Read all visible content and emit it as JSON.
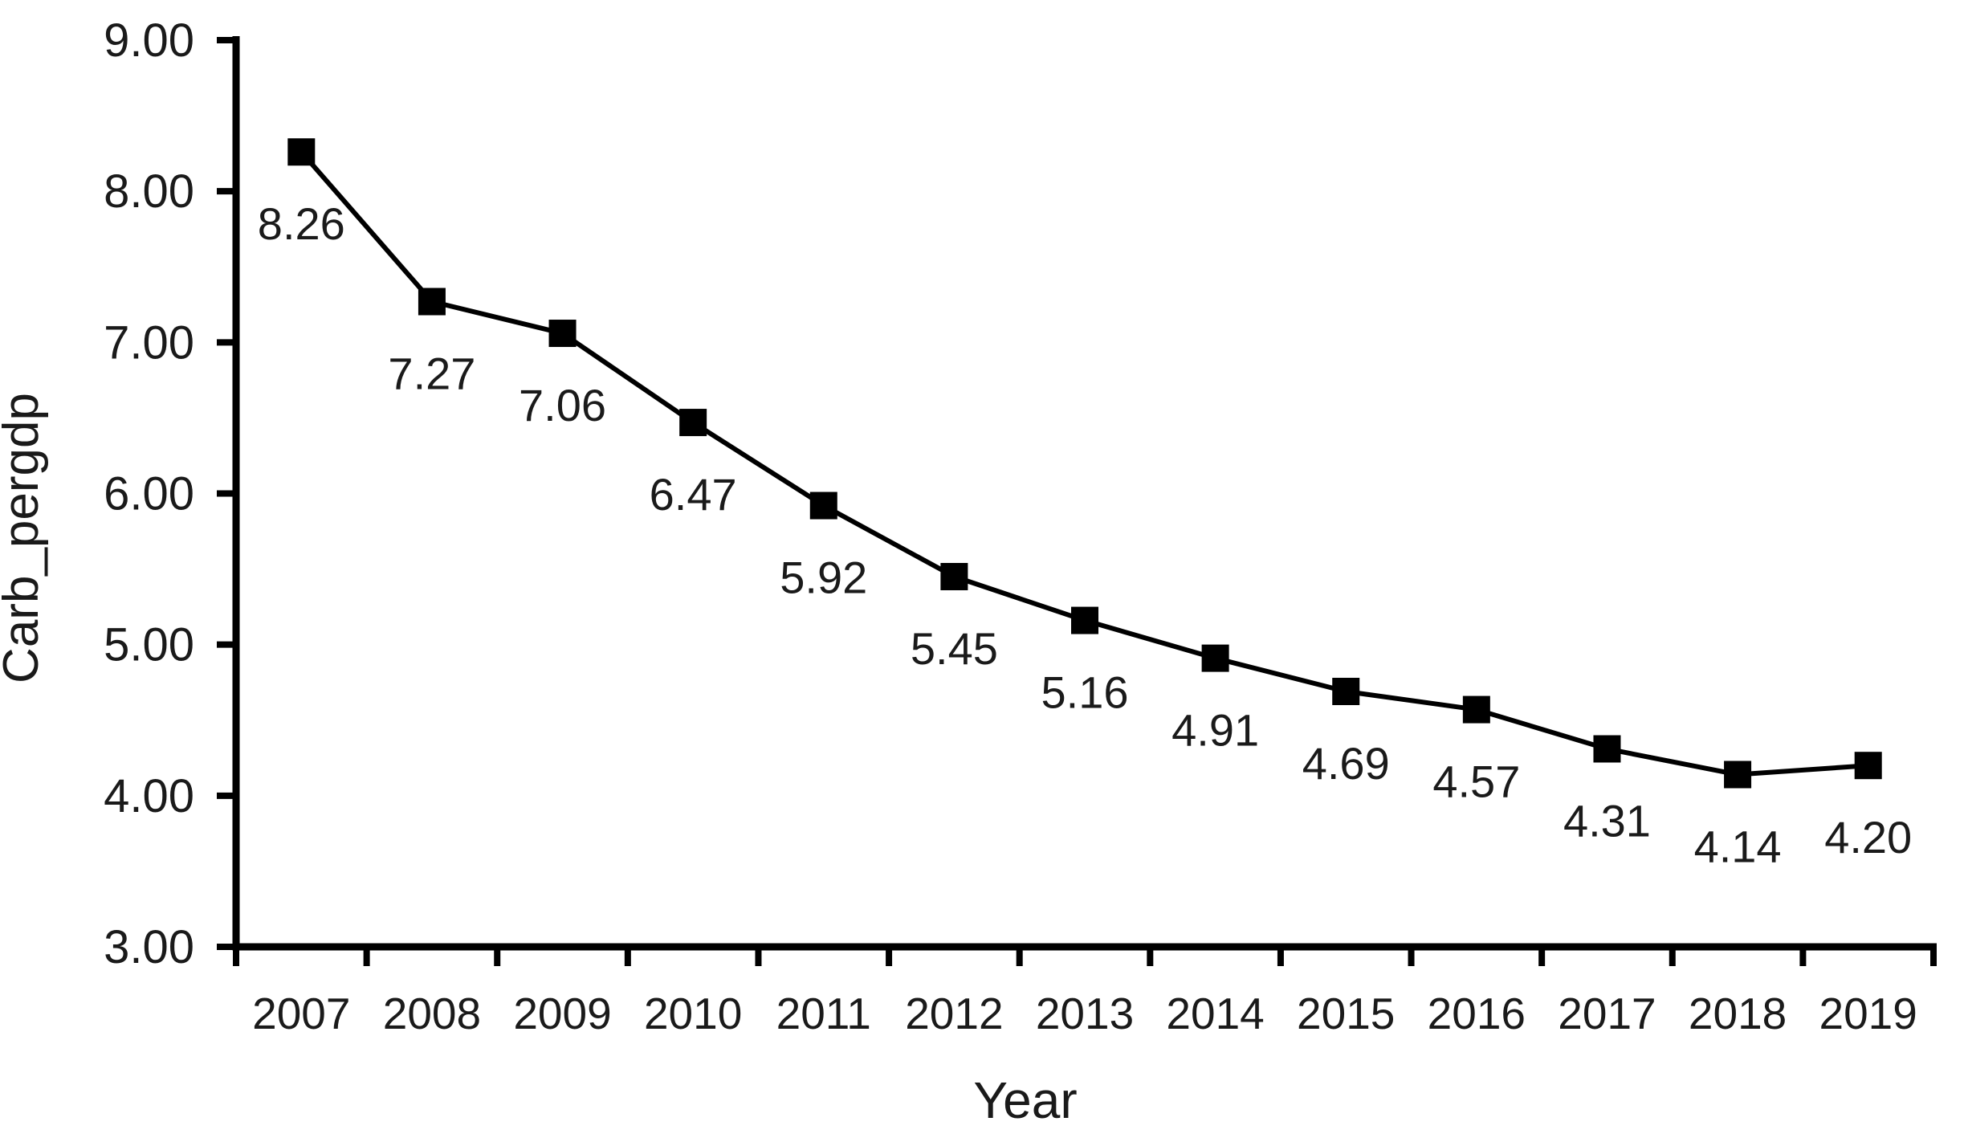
{
  "page": {
    "background": "#ffffff"
  },
  "chart_data": {
    "type": "line",
    "title": "",
    "xlabel": "Year",
    "ylabel": "Carb_pergdp",
    "categories": [
      "2007",
      "2008",
      "2009",
      "2010",
      "2011",
      "2012",
      "2013",
      "2014",
      "2015",
      "2016",
      "2017",
      "2018",
      "2019"
    ],
    "series": [
      {
        "name": "Carb_pergdp",
        "values": [
          8.26,
          7.27,
          7.06,
          6.47,
          5.92,
          5.45,
          5.16,
          4.91,
          4.69,
          4.57,
          4.31,
          4.14,
          4.2
        ],
        "labels": [
          "8.26",
          "7.27",
          "7.06",
          "6.47",
          "5.92",
          "5.45",
          "5.16",
          "4.91",
          "4.69",
          "4.57",
          "4.31",
          "4.14",
          "4.20"
        ]
      }
    ],
    "ylim": [
      3,
      9
    ],
    "yticks": [
      {
        "value": 9,
        "label": "9.00"
      },
      {
        "value": 8,
        "label": "8.00"
      },
      {
        "value": 7,
        "label": "7.00"
      },
      {
        "value": 6,
        "label": "6.00"
      },
      {
        "value": 5,
        "label": "5.00"
      },
      {
        "value": 4,
        "label": "4.00"
      },
      {
        "value": 3,
        "label": "3.00"
      }
    ],
    "grid": false,
    "legend": "none",
    "marker": "square",
    "data_labels_position": "below",
    "line_color": "#000000",
    "marker_color": "#000000",
    "axis_color": "#000000",
    "text_color": "#1a1a1a"
  }
}
